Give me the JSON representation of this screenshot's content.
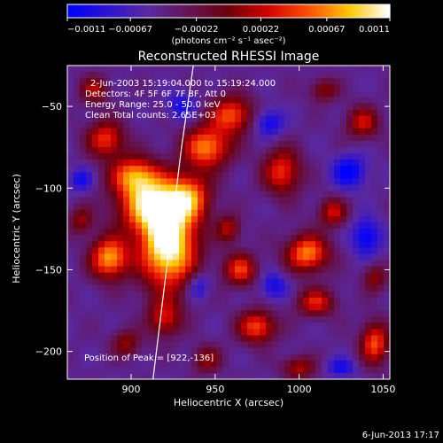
{
  "chart_data": {
    "type": "heatmap",
    "title": "Reconstructed RHESSI Image",
    "xlabel": "Heliocentric X (arcsec)",
    "ylabel": "Heliocentric Y (arcsec)",
    "xlim": [
      862,
      1054
    ],
    "ylim": [
      -217,
      -25
    ],
    "x_ticks": [
      900,
      950,
      1000,
      1050
    ],
    "x_tick_labels": [
      "900",
      "950",
      "1000",
      "1050"
    ],
    "y_ticks": [
      -50,
      -100,
      -150,
      -200
    ],
    "y_tick_labels": [
      "−50",
      "−100",
      "−150",
      "−200"
    ],
    "colorbar": {
      "min": -0.0011,
      "max": 0.0011,
      "ticks": [
        -0.0011,
        -0.00067,
        -0.00022,
        0.00022,
        0.00067,
        0.0011
      ],
      "tick_labels": [
        "−0.0011",
        "−0.00067",
        "−0.00022",
        "0.00022",
        "0.00067",
        "0.0011"
      ],
      "units": "(photons cm⁻² s⁻¹ asec⁻²)"
    },
    "annotations": [
      "2-Jun-2003 15:19:04.000 to 15:19:24.000",
      "Detectors: 4F 5F 6F 7F 8F, Att 0",
      "Energy Range: 25.0 - 50.0 keV",
      "Clean     Total counts: 2.65E+03"
    ],
    "peak_label": "Position of Peak = [922,-136]",
    "peak": [
      922,
      -136
    ],
    "limb_curve": [
      [
        937,
        -25
      ],
      [
        930,
        -75
      ],
      [
        924,
        -125
      ],
      [
        918,
        -175
      ],
      [
        913,
        -217
      ]
    ],
    "blobs": [
      {
        "x": 922,
        "y": -136,
        "sx": 12,
        "sy": 18,
        "a": 1.0
      },
      {
        "x": 912,
        "y": -110,
        "sx": 14,
        "sy": 12,
        "a": 0.8
      },
      {
        "x": 902,
        "y": -92,
        "sx": 10,
        "sy": 8,
        "a": 0.62
      },
      {
        "x": 887,
        "y": -143,
        "sx": 8,
        "sy": 9,
        "a": 0.75
      },
      {
        "x": 935,
        "y": -105,
        "sx": 9,
        "sy": 10,
        "a": 0.55
      },
      {
        "x": 945,
        "y": -75,
        "sx": 10,
        "sy": 9,
        "a": 0.7
      },
      {
        "x": 960,
        "y": -55,
        "sx": 9,
        "sy": 8,
        "a": 0.6
      },
      {
        "x": 885,
        "y": -70,
        "sx": 8,
        "sy": 8,
        "a": 0.55
      },
      {
        "x": 878,
        "y": -40,
        "sx": 6,
        "sy": 6,
        "a": 0.4
      },
      {
        "x": 920,
        "y": -180,
        "sx": 7,
        "sy": 8,
        "a": 0.45
      },
      {
        "x": 990,
        "y": -90,
        "sx": 8,
        "sy": 10,
        "a": 0.55
      },
      {
        "x": 1005,
        "y": -140,
        "sx": 9,
        "sy": 8,
        "a": 0.7
      },
      {
        "x": 1020,
        "y": -115,
        "sx": 6,
        "sy": 6,
        "a": 0.45
      },
      {
        "x": 965,
        "y": -150,
        "sx": 7,
        "sy": 7,
        "a": 0.55
      },
      {
        "x": 975,
        "y": -185,
        "sx": 8,
        "sy": 7,
        "a": 0.6
      },
      {
        "x": 1045,
        "y": -195,
        "sx": 6,
        "sy": 9,
        "a": 0.6
      },
      {
        "x": 1010,
        "y": -170,
        "sx": 8,
        "sy": 6,
        "a": 0.5
      },
      {
        "x": 1038,
        "y": -60,
        "sx": 7,
        "sy": 7,
        "a": 0.45
      },
      {
        "x": 1015,
        "y": -40,
        "sx": 6,
        "sy": 5,
        "a": 0.35
      },
      {
        "x": 897,
        "y": -195,
        "sx": 6,
        "sy": 6,
        "a": 0.35
      },
      {
        "x": 945,
        "y": -205,
        "sx": 6,
        "sy": 6,
        "a": 0.35
      },
      {
        "x": 1000,
        "y": -210,
        "sx": 7,
        "sy": 5,
        "a": 0.4
      },
      {
        "x": 958,
        "y": -125,
        "sx": 5,
        "sy": 6,
        "a": 0.4
      },
      {
        "x": 1045,
        "y": -155,
        "sx": 5,
        "sy": 6,
        "a": 0.35
      },
      {
        "x": 870,
        "y": -120,
        "sx": 5,
        "sy": 6,
        "a": 0.35
      },
      {
        "x": 982,
        "y": -60,
        "sx": 6,
        "sy": 6,
        "a": -0.35
      },
      {
        "x": 1030,
        "y": -90,
        "sx": 7,
        "sy": 7,
        "a": -0.4
      },
      {
        "x": 1040,
        "y": -130,
        "sx": 6,
        "sy": 8,
        "a": -0.4
      },
      {
        "x": 870,
        "y": -95,
        "sx": 5,
        "sy": 5,
        "a": -0.3
      },
      {
        "x": 940,
        "y": -160,
        "sx": 5,
        "sy": 6,
        "a": -0.3
      },
      {
        "x": 985,
        "y": -160,
        "sx": 6,
        "sy": 6,
        "a": -0.3
      },
      {
        "x": 930,
        "y": -50,
        "sx": 6,
        "sy": 6,
        "a": -0.3
      },
      {
        "x": 1025,
        "y": -210,
        "sx": 6,
        "sy": 4,
        "a": -0.3
      }
    ]
  },
  "footer": {
    "timestamp": "6-Jun-2013 17:17"
  }
}
